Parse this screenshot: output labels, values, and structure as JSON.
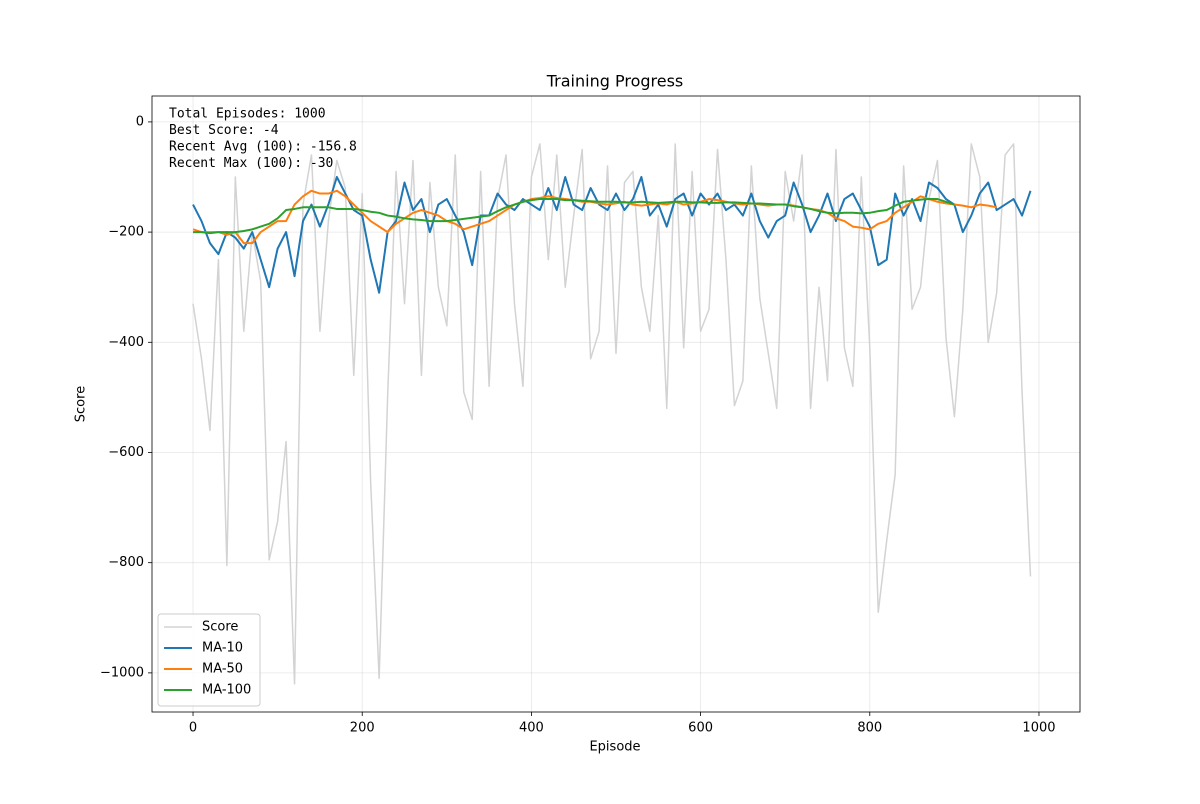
{
  "chart_data": {
    "type": "line",
    "title": "Training Progress",
    "xlabel": "Episode",
    "ylabel": "Score",
    "annotation_lines": [
      "Total Episodes: 1000",
      "Best Score: -4",
      "Recent Avg (100): -156.8",
      "Recent Max (100): -30"
    ],
    "x": [
      0,
      10,
      20,
      30,
      40,
      50,
      60,
      70,
      80,
      90,
      100,
      110,
      120,
      130,
      140,
      150,
      160,
      170,
      180,
      190,
      200,
      210,
      220,
      230,
      240,
      250,
      260,
      270,
      280,
      290,
      300,
      310,
      320,
      330,
      340,
      350,
      360,
      370,
      380,
      390,
      400,
      410,
      420,
      430,
      440,
      450,
      460,
      470,
      480,
      490,
      500,
      510,
      520,
      530,
      540,
      550,
      560,
      570,
      580,
      590,
      600,
      610,
      620,
      630,
      640,
      650,
      660,
      670,
      680,
      690,
      700,
      710,
      720,
      730,
      740,
      750,
      760,
      770,
      780,
      790,
      800,
      810,
      820,
      830,
      840,
      850,
      860,
      870,
      880,
      890,
      900,
      910,
      920,
      930,
      940,
      950,
      960,
      970,
      980,
      990
    ],
    "series": [
      {
        "name": "Score",
        "color": "#d3d3d3",
        "width": 1.5,
        "values": [
          -330,
          -430,
          -560,
          -250,
          -805,
          -100,
          -380,
          -200,
          -290,
          -795,
          -725,
          -580,
          -1020,
          -150,
          -60,
          -380,
          -180,
          -70,
          -120,
          -460,
          -130,
          -655,
          -1010,
          -500,
          -90,
          -330,
          -70,
          -460,
          -110,
          -300,
          -370,
          -60,
          -490,
          -540,
          -90,
          -480,
          -140,
          -60,
          -330,
          -480,
          -100,
          -40,
          -250,
          -60,
          -300,
          -170,
          -50,
          -430,
          -380,
          -80,
          -420,
          -110,
          -90,
          -300,
          -380,
          -170,
          -520,
          -40,
          -410,
          -90,
          -380,
          -340,
          -50,
          -250,
          -515,
          -470,
          -80,
          -320,
          -420,
          -520,
          -90,
          -180,
          -60,
          -520,
          -300,
          -470,
          -50,
          -410,
          -480,
          -100,
          -410,
          -890,
          -760,
          -640,
          -80,
          -340,
          -300,
          -140,
          -70,
          -390,
          -535,
          -340,
          -40,
          -100,
          -400,
          -310,
          -60,
          -40,
          -490,
          -825
        ]
      },
      {
        "name": "MA-10",
        "color": "#1f77b4",
        "width": 2,
        "values": [
          -150,
          -180,
          -220,
          -240,
          -200,
          -210,
          -230,
          -200,
          -250,
          -300,
          -230,
          -200,
          -280,
          -180,
          -150,
          -190,
          -150,
          -100,
          -130,
          -160,
          -170,
          -250,
          -310,
          -200,
          -180,
          -110,
          -160,
          -140,
          -200,
          -150,
          -140,
          -170,
          -200,
          -260,
          -170,
          -170,
          -130,
          -150,
          -160,
          -140,
          -150,
          -160,
          -120,
          -160,
          -100,
          -150,
          -160,
          -120,
          -150,
          -160,
          -130,
          -160,
          -140,
          -100,
          -170,
          -150,
          -190,
          -140,
          -130,
          -170,
          -130,
          -150,
          -130,
          -160,
          -150,
          -170,
          -130,
          -180,
          -210,
          -180,
          -170,
          -110,
          -150,
          -200,
          -170,
          -130,
          -180,
          -140,
          -130,
          -160,
          -190,
          -260,
          -250,
          -130,
          -170,
          -140,
          -180,
          -110,
          -120,
          -140,
          -150,
          -200,
          -170,
          -130,
          -110,
          -160,
          -150,
          -140,
          -170,
          -125
        ]
      },
      {
        "name": "MA-50",
        "color": "#ff7f0e",
        "width": 2,
        "values": [
          -195,
          -200,
          -200,
          -200,
          -205,
          -200,
          -220,
          -220,
          -200,
          -190,
          -180,
          -180,
          -150,
          -135,
          -125,
          -130,
          -130,
          -125,
          -135,
          -150,
          -165,
          -180,
          -190,
          -200,
          -185,
          -175,
          -165,
          -160,
          -165,
          -170,
          -180,
          -185,
          -195,
          -190,
          -185,
          -180,
          -170,
          -160,
          -150,
          -145,
          -140,
          -138,
          -135,
          -138,
          -140,
          -142,
          -145,
          -145,
          -148,
          -150,
          -148,
          -145,
          -150,
          -152,
          -150,
          -148,
          -150,
          -145,
          -150,
          -148,
          -145,
          -140,
          -142,
          -145,
          -148,
          -150,
          -148,
          -150,
          -152,
          -150,
          -150,
          -152,
          -155,
          -158,
          -160,
          -165,
          -175,
          -180,
          -190,
          -192,
          -195,
          -185,
          -180,
          -165,
          -155,
          -145,
          -135,
          -140,
          -145,
          -148,
          -150,
          -152,
          -155,
          -150,
          -152,
          -155,
          null,
          null,
          null,
          null
        ]
      },
      {
        "name": "MA-100",
        "color": "#2ca02c",
        "width": 2,
        "values": [
          -200,
          -200,
          -202,
          -200,
          -200,
          -200,
          -198,
          -195,
          -190,
          -185,
          -175,
          -160,
          -158,
          -155,
          -155,
          -155,
          -155,
          -158,
          -158,
          -158,
          -160,
          -163,
          -165,
          -170,
          -172,
          -175,
          -177,
          -178,
          -180,
          -180,
          -180,
          -178,
          -176,
          -174,
          -172,
          -170,
          -162,
          -155,
          -150,
          -145,
          -142,
          -140,
          -140,
          -140,
          -142,
          -142,
          -143,
          -144,
          -145,
          -145,
          -145,
          -146,
          -146,
          -145,
          -146,
          -147,
          -146,
          -145,
          -145,
          -146,
          -146,
          -147,
          -147,
          -146,
          -146,
          -147,
          -148,
          -148,
          -149,
          -150,
          -150,
          -153,
          -155,
          -158,
          -162,
          -165,
          -166,
          -165,
          -165,
          -166,
          -165,
          -162,
          -160,
          -152,
          -145,
          -143,
          -141,
          -140,
          -140,
          -145,
          -150,
          null,
          null,
          null,
          null,
          null,
          null,
          null,
          null,
          null
        ]
      }
    ],
    "xlim": [
      -48.5,
      1048.5
    ],
    "ylim": [
      -1071,
      47
    ],
    "xticks": [
      0,
      200,
      400,
      600,
      800,
      1000
    ],
    "yticks": [
      0,
      {
        "value": -200,
        "label": "−200"
      },
      {
        "value": -400,
        "label": "−400"
      },
      {
        "value": -600,
        "label": "−600"
      },
      {
        "value": -800,
        "label": "−800"
      },
      {
        "value": -1000,
        "label": "−1000"
      }
    ],
    "grid": true,
    "legend": "lower left"
  }
}
